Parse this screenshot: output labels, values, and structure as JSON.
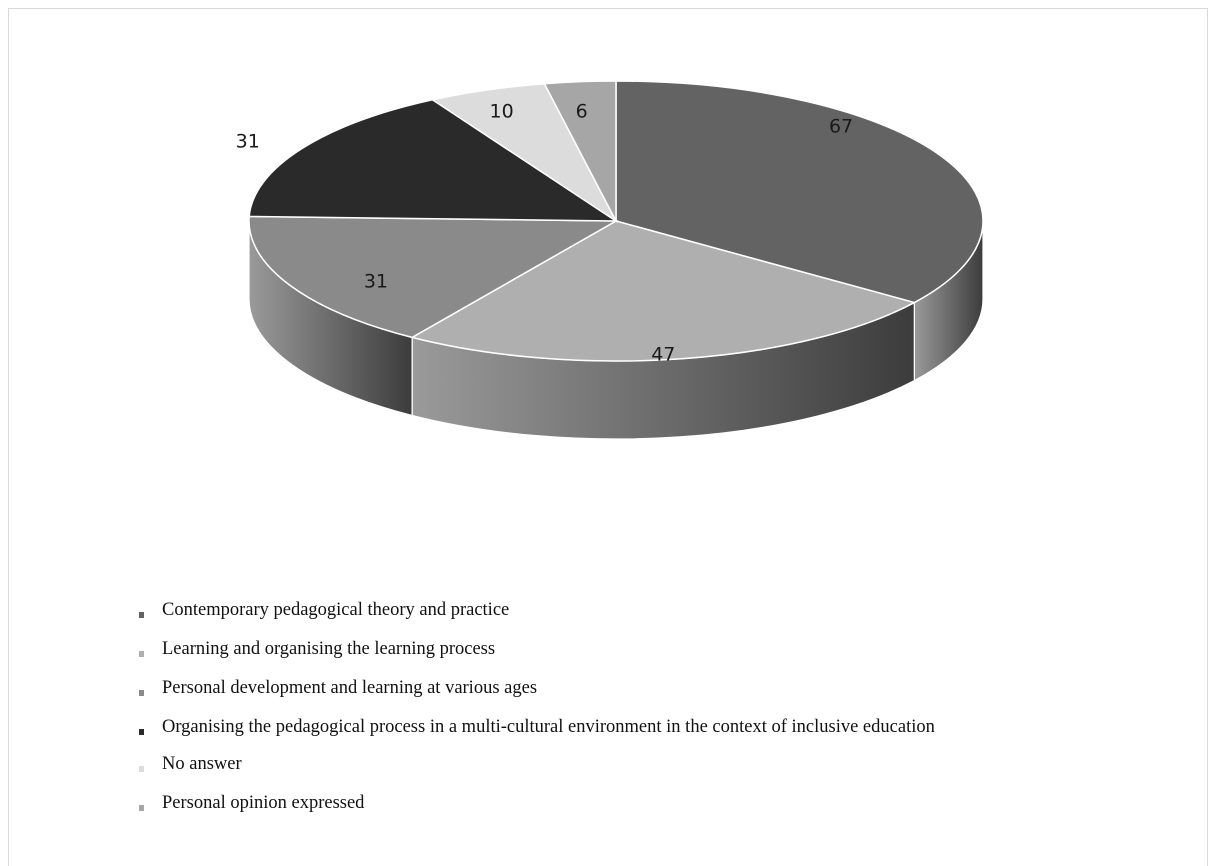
{
  "chart_data": {
    "type": "pie",
    "style": "3d",
    "title": "",
    "categories": [
      "Contemporary pedagogical theory and practice",
      "Learning and organising the learning process",
      "Personal development and learning at various ages",
      "Organising the pedagogical process in a multi-cultural environment in the context of inclusive education",
      "No answer",
      "Personal opinion expressed"
    ],
    "values": [
      67,
      47,
      31,
      31,
      10,
      6
    ],
    "colors": [
      "#636363",
      "#afafaf",
      "#8a8a8a",
      "#2a2a2a",
      "#dcdcdc",
      "#a6a6a6"
    ],
    "data_labels": [
      "67",
      "47",
      "31",
      "31",
      "10",
      "6"
    ],
    "legend": {
      "position": "bottom",
      "entries": [
        "Contemporary pedagogical theory and practice",
        "Learning and organising the learning process",
        "Personal development and learning at various ages",
        "Organising the pedagogical process in a multi-cultural environment in the context of inclusive education",
        "No answer",
        "Personal opinion expressed"
      ]
    }
  }
}
